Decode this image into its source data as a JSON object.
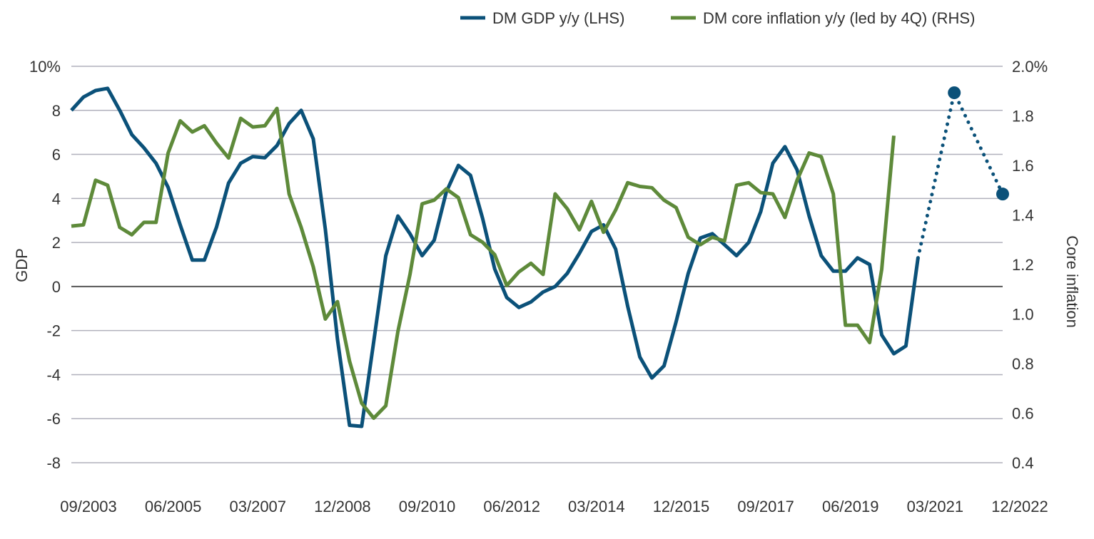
{
  "chart_data": {
    "type": "line",
    "title": "",
    "legend_placement": "top-right",
    "grid": true,
    "x_tick_labels": [
      "09/2003",
      "06/2005",
      "03/2007",
      "12/2008",
      "09/2010",
      "06/2012",
      "03/2014",
      "12/2015",
      "09/2017",
      "06/2019",
      "03/2021",
      "12/2022"
    ],
    "x_start": "09/2003",
    "x_end": "12/2022",
    "x_frequency": "quarterly",
    "left_axis": {
      "label": "GDP",
      "ylim": [
        -8,
        10
      ],
      "ticks": [
        "10%",
        "8",
        "6",
        "4",
        "2",
        "0",
        "-2",
        "-4",
        "-6",
        "-8"
      ],
      "tick_values": [
        10,
        8,
        6,
        4,
        2,
        0,
        -2,
        -4,
        -6,
        -8
      ]
    },
    "right_axis": {
      "label": "Core inflation",
      "ylim": [
        0.4,
        2.0
      ],
      "ticks": [
        "2.0%",
        "1.8",
        "1.6",
        "1.4",
        "1.2",
        "1.0",
        "0.8",
        "0.6",
        "0.4"
      ],
      "tick_values": [
        2.0,
        1.8,
        1.6,
        1.4,
        1.2,
        1.0,
        0.8,
        0.6,
        0.4
      ]
    },
    "series": [
      {
        "name": "DM GDP y/y (LHS)",
        "axis": "left",
        "color": "#0b5179",
        "values": [
          8.0,
          8.6,
          8.9,
          9.0,
          8.0,
          6.9,
          6.3,
          5.6,
          4.5,
          2.8,
          1.2,
          1.2,
          2.7,
          4.7,
          5.6,
          5.9,
          5.85,
          6.4,
          7.4,
          8.0,
          6.7,
          2.6,
          -2.4,
          -6.3,
          -6.35,
          -2.5,
          1.4,
          3.2,
          2.4,
          1.4,
          2.1,
          4.3,
          5.5,
          5.05,
          3.1,
          0.8,
          -0.5,
          -0.95,
          -0.7,
          -0.25,
          0.0,
          0.6,
          1.5,
          2.5,
          2.8,
          1.7,
          -0.9,
          -3.2,
          -4.15,
          -3.6,
          -1.6,
          0.6,
          2.2,
          2.4,
          1.9,
          1.4,
          2.0,
          3.4,
          5.6,
          6.35,
          5.3,
          3.2,
          1.4,
          0.7,
          0.7,
          1.3,
          1.0,
          -2.2,
          -3.05,
          -2.7,
          1.3
        ]
      },
      {
        "name": "DM core inflation y/y (led by 4Q) (RHS)",
        "axis": "right",
        "color": "#5e8a3a",
        "values": [
          1.355,
          1.36,
          1.54,
          1.52,
          1.35,
          1.32,
          1.37,
          1.37,
          1.65,
          1.78,
          1.735,
          1.76,
          1.69,
          1.63,
          1.79,
          1.755,
          1.76,
          1.83,
          1.485,
          1.35,
          1.19,
          0.98,
          1.05,
          0.81,
          0.64,
          0.58,
          0.63,
          0.93,
          1.16,
          1.445,
          1.46,
          1.505,
          1.47,
          1.32,
          1.29,
          1.24,
          1.115,
          1.17,
          1.205,
          1.16,
          1.485,
          1.425,
          1.34,
          1.455,
          1.33,
          1.42,
          1.53,
          1.515,
          1.51,
          1.46,
          1.43,
          1.31,
          1.28,
          1.31,
          1.295,
          1.52,
          1.53,
          1.49,
          1.485,
          1.39,
          1.54,
          1.65,
          1.635,
          1.485,
          0.955,
          0.955,
          0.885,
          1.18,
          1.72
        ]
      }
    ],
    "gdp_forecast": {
      "axis": "left",
      "style": "dotted",
      "points": [
        {
          "date": "03/2021",
          "value": 1.3,
          "marker": false
        },
        {
          "date": "12/2021",
          "value": 8.8,
          "marker": true
        },
        {
          "date": "12/2022",
          "value": 4.2,
          "marker": true
        }
      ]
    }
  }
}
